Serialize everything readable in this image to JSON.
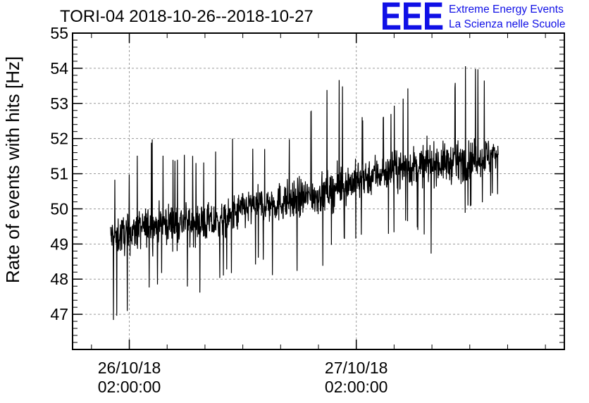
{
  "chart_data": {
    "type": "line",
    "title": "TORI-04 2018-10-26--2018-10-27",
    "ylabel": "Rate of events with hits [Hz]",
    "xlabel": "",
    "ylim": [
      46,
      55
    ],
    "yticks": [
      {
        "value": 47,
        "label": "47"
      },
      {
        "value": 48,
        "label": "48"
      },
      {
        "value": 49,
        "label": "49"
      },
      {
        "value": 50,
        "label": "50"
      },
      {
        "value": 51,
        "label": "51"
      },
      {
        "value": 52,
        "label": "52"
      },
      {
        "value": 53,
        "label": "53"
      },
      {
        "value": 54,
        "label": "54"
      },
      {
        "value": 55,
        "label": "55"
      }
    ],
    "xlim": [
      "2018-10-25T20:00:00",
      "2018-10-28T00:00:00"
    ],
    "xticks": [
      {
        "value": "2018-10-26T02:00:00",
        "line1": "26/10/18",
        "line2": "02:00:00"
      },
      {
        "value": "2018-10-27T02:00:00",
        "line1": "27/10/18",
        "line2": "02:00:00"
      }
    ],
    "grid": true,
    "color": "#000000",
    "series": [
      {
        "x": [
          "2018-10-26T00:00:00",
          "2018-10-26T02:00:00",
          "2018-10-26T04:00:00",
          "2018-10-26T06:00:00",
          "2018-10-26T08:00:00",
          "2018-10-26T10:00:00",
          "2018-10-26T12:00:00",
          "2018-10-26T14:00:00",
          "2018-10-26T16:00:00",
          "2018-10-26T18:00:00",
          "2018-10-26T20:00:00",
          "2018-10-26T22:00:00",
          "2018-10-27T00:00:00",
          "2018-10-27T02:00:00",
          "2018-10-27T04:00:00",
          "2018-10-27T06:00:00",
          "2018-10-27T08:00:00",
          "2018-10-27T10:00:00",
          "2018-10-27T12:00:00",
          "2018-10-27T14:00:00",
          "2018-10-27T16:00:00",
          "2018-10-27T17:00:00"
        ],
        "center": [
          49.2,
          49.3,
          49.5,
          49.6,
          49.6,
          49.6,
          49.6,
          50.0,
          50.1,
          50.2,
          50.3,
          50.4,
          50.6,
          50.8,
          51.0,
          51.1,
          51.2,
          51.3,
          51.3,
          51.4,
          51.5,
          51.6
        ],
        "min": [
          46.8,
          46.8,
          47.6,
          48.0,
          47.8,
          47.3,
          48.0,
          48.4,
          48.3,
          47.8,
          48.0,
          48.2,
          48.9,
          49.0,
          49.2,
          49.3,
          49.6,
          48.6,
          49.8,
          49.8,
          50.2,
          50.4
        ],
        "max": [
          51.0,
          51.1,
          52.1,
          51.7,
          51.6,
          51.6,
          52.0,
          52.1,
          51.9,
          52.0,
          52.4,
          53.1,
          53.9,
          52.6,
          52.8,
          53.0,
          53.7,
          53.7,
          53.4,
          54.3,
          53.6,
          52.9
        ]
      }
    ]
  },
  "logo": {
    "mark": "EEE",
    "line1": "Extreme Energy Events",
    "line2": "La Scienza nelle Scuole"
  }
}
